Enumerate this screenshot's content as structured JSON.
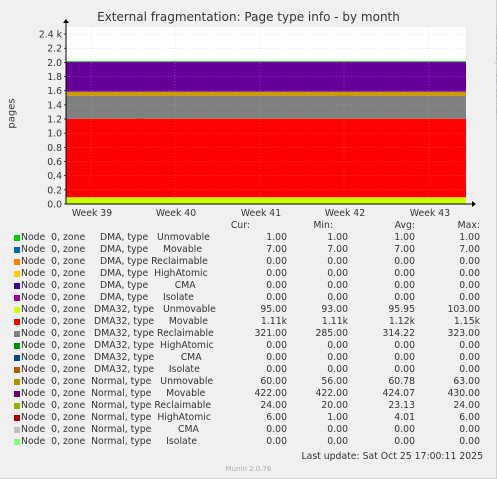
{
  "chart_data": {
    "type": "area",
    "title": "External fragmentation: Page type info - by month",
    "ylabel": "pages",
    "side_label": "RRDTOOL / TOBI OETIKER",
    "x_ticks": [
      "Week 39",
      "Week 40",
      "Week 41",
      "Week 42",
      "Week 43"
    ],
    "y_ticks": [
      "0.0",
      "0.2",
      "0.4",
      "0.6",
      "0.8",
      "1.0",
      "1.2",
      "1.4",
      "1.6",
      "1.8",
      "2.0",
      "2.2",
      "2.4 k"
    ],
    "ylim": [
      0,
      2.5
    ],
    "y_unit": "k",
    "grid": true,
    "stacked_bands": [
      {
        "name": "DMA32, type Unmovable",
        "color": "#ccff00",
        "value": 0.095
      },
      {
        "name": "DMA32, type Movable",
        "color": "#ff0000",
        "value": 1.11
      },
      {
        "name": "DMA32, type Reclaimable",
        "color": "#808080",
        "value": 0.321
      },
      {
        "name": "Normal, type Unmovable",
        "color": "#cc9900",
        "value": 0.06
      },
      {
        "name": "Normal, type Movable",
        "color": "#660099",
        "value": 0.422
      },
      {
        "name": "DMA, type Unmovable",
        "color": "#00cc00",
        "value": 0.01
      }
    ],
    "spike": {
      "band": "DMA32, type Movable",
      "at": "Week 39",
      "value": 1.15
    }
  },
  "legend": {
    "headers": {
      "cur": "Cur:",
      "min": "Min:",
      "avg": "Avg:",
      "max": "Max:"
    },
    "rows": [
      {
        "label": "Node  0, zone     DMA, type   Unmovable",
        "color": "#00cc00",
        "cur": "1.00",
        "min": "1.00",
        "avg": "1.00",
        "max": "1.00"
      },
      {
        "label": "Node  0, zone     DMA, type     Movable",
        "color": "#0066b3",
        "cur": "7.00",
        "min": "7.00",
        "avg": "7.00",
        "max": "7.00"
      },
      {
        "label": "Node  0, zone     DMA, type Reclaimable",
        "color": "#ff8000",
        "cur": "0.00",
        "min": "0.00",
        "avg": "0.00",
        "max": "0.00"
      },
      {
        "label": "Node  0, zone     DMA, type  HighAtomic",
        "color": "#ffcc00",
        "cur": "0.00",
        "min": "0.00",
        "avg": "0.00",
        "max": "0.00"
      },
      {
        "label": "Node  0, zone     DMA, type         CMA",
        "color": "#330099",
        "cur": "0.00",
        "min": "0.00",
        "avg": "0.00",
        "max": "0.00"
      },
      {
        "label": "Node  0, zone     DMA, type     Isolate",
        "color": "#990099",
        "cur": "0.00",
        "min": "0.00",
        "avg": "0.00",
        "max": "0.00"
      },
      {
        "label": "Node  0, zone   DMA32, type   Unmovable",
        "color": "#ccff00",
        "cur": "95.00",
        "min": "93.00",
        "avg": "95.95",
        "max": "103.00"
      },
      {
        "label": "Node  0, zone   DMA32, type     Movable",
        "color": "#ff0000",
        "cur": "1.11k",
        "min": "1.11k",
        "avg": "1.12k",
        "max": "1.15k"
      },
      {
        "label": "Node  0, zone   DMA32, type Reclaimable",
        "color": "#808080",
        "cur": "321.00",
        "min": "285.00",
        "avg": "314.22",
        "max": "323.00"
      },
      {
        "label": "Node  0, zone   DMA32, type  HighAtomic",
        "color": "#008f00",
        "cur": "0.00",
        "min": "0.00",
        "avg": "0.00",
        "max": "0.00"
      },
      {
        "label": "Node  0, zone   DMA32, type         CMA",
        "color": "#00487d",
        "cur": "0.00",
        "min": "0.00",
        "avg": "0.00",
        "max": "0.00"
      },
      {
        "label": "Node  0, zone   DMA32, type     Isolate",
        "color": "#b35a00",
        "cur": "0.00",
        "min": "0.00",
        "avg": "0.00",
        "max": "0.00"
      },
      {
        "label": "Node  0, zone  Normal, type   Unmovable",
        "color": "#b38f00",
        "cur": "60.00",
        "min": "56.00",
        "avg": "60.78",
        "max": "63.00"
      },
      {
        "label": "Node  0, zone  Normal, type     Movable",
        "color": "#6b006b",
        "cur": "422.00",
        "min": "422.00",
        "avg": "424.07",
        "max": "430.00"
      },
      {
        "label": "Node  0, zone  Normal, type Reclaimable",
        "color": "#8fb300",
        "cur": "24.00",
        "min": "20.00",
        "avg": "23.13",
        "max": "24.00"
      },
      {
        "label": "Node  0, zone  Normal, type  HighAtomic",
        "color": "#b30000",
        "cur": "6.00",
        "min": "1.00",
        "avg": "4.01",
        "max": "6.00"
      },
      {
        "label": "Node  0, zone  Normal, type         CMA",
        "color": "#bebebe",
        "cur": "0.00",
        "min": "0.00",
        "avg": "0.00",
        "max": "0.00"
      },
      {
        "label": "Node  0, zone  Normal, type     Isolate",
        "color": "#80ff80",
        "cur": "0.00",
        "min": "0.00",
        "avg": "0.00",
        "max": "0.00"
      }
    ]
  },
  "footer": {
    "last_update": "Last update: Sat Oct 25 17:00:11 2025",
    "version": "Munin 2.0.76"
  }
}
